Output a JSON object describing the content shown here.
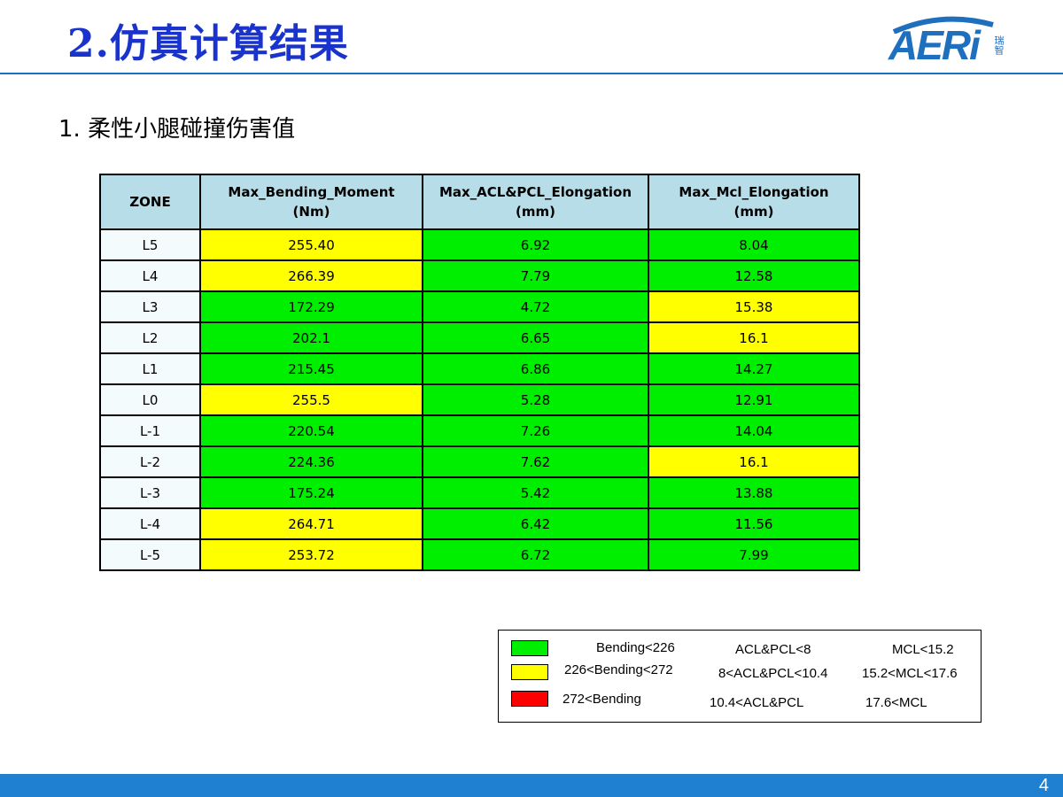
{
  "header": {
    "title": "2.仿真计算结果",
    "logo_text": "AERi",
    "logo_side_text": "瑞智"
  },
  "section": {
    "subtitle": "1. 柔性小腿碰撞伤害值"
  },
  "table": {
    "columns": [
      {
        "line1": "ZONE",
        "line2": ""
      },
      {
        "line1": "Max_Bending_Moment",
        "line2": "(Nm)"
      },
      {
        "line1": "Max_ACL&PCL_Elongation",
        "line2": "(mm)"
      },
      {
        "line1": "Max_Mcl_Elongation",
        "line2": "(mm)"
      }
    ],
    "rows": [
      {
        "zone": "L5",
        "bending": "255.40",
        "bending_level": "yellow",
        "acl": "6.92",
        "acl_level": "green",
        "mcl": "8.04",
        "mcl_level": "green"
      },
      {
        "zone": "L4",
        "bending": "266.39",
        "bending_level": "yellow",
        "acl": "7.79",
        "acl_level": "green",
        "mcl": "12.58",
        "mcl_level": "green"
      },
      {
        "zone": "L3",
        "bending": "172.29",
        "bending_level": "green",
        "acl": "4.72",
        "acl_level": "green",
        "mcl": "15.38",
        "mcl_level": "yellow"
      },
      {
        "zone": "L2",
        "bending": "202.1",
        "bending_level": "green",
        "acl": "6.65",
        "acl_level": "green",
        "mcl": "16.1",
        "mcl_level": "yellow"
      },
      {
        "zone": "L1",
        "bending": "215.45",
        "bending_level": "green",
        "acl": "6.86",
        "acl_level": "green",
        "mcl": "14.27",
        "mcl_level": "green"
      },
      {
        "zone": "L0",
        "bending": "255.5",
        "bending_level": "yellow",
        "acl": "5.28",
        "acl_level": "green",
        "mcl": "12.91",
        "mcl_level": "green"
      },
      {
        "zone": "L-1",
        "bending": "220.54",
        "bending_level": "green",
        "acl": "7.26",
        "acl_level": "green",
        "mcl": "14.04",
        "mcl_level": "green"
      },
      {
        "zone": "L-2",
        "bending": "224.36",
        "bending_level": "green",
        "acl": "7.62",
        "acl_level": "green",
        "mcl": "16.1",
        "mcl_level": "yellow"
      },
      {
        "zone": "L-3",
        "bending": "175.24",
        "bending_level": "green",
        "acl": "5.42",
        "acl_level": "green",
        "mcl": "13.88",
        "mcl_level": "green"
      },
      {
        "zone": "L-4",
        "bending": "264.71",
        "bending_level": "yellow",
        "acl": "6.42",
        "acl_level": "green",
        "mcl": "11.56",
        "mcl_level": "green"
      },
      {
        "zone": "L-5",
        "bending": "253.72",
        "bending_level": "yellow",
        "acl": "6.72",
        "acl_level": "green",
        "mcl": "7.99",
        "mcl_level": "green"
      }
    ]
  },
  "legend": {
    "colors": {
      "green": "#00ee00",
      "yellow": "#ffff00",
      "red": "#ff0000"
    },
    "rows": [
      {
        "color": "green",
        "bending": "Bending<226",
        "acl": "ACL&PCL<8",
        "mcl": "MCL<15.2"
      },
      {
        "color": "yellow",
        "bending": "226<Bending<272",
        "acl": "8<ACL&PCL<10.4",
        "mcl": "15.2<MCL<17.6"
      },
      {
        "color": "red",
        "bending": "272<Bending",
        "acl": "10.4<ACL&PCL",
        "mcl": "17.6<MCL"
      }
    ]
  },
  "footer": {
    "page_number": "4",
    "bar_color": "#1f7fd0"
  }
}
